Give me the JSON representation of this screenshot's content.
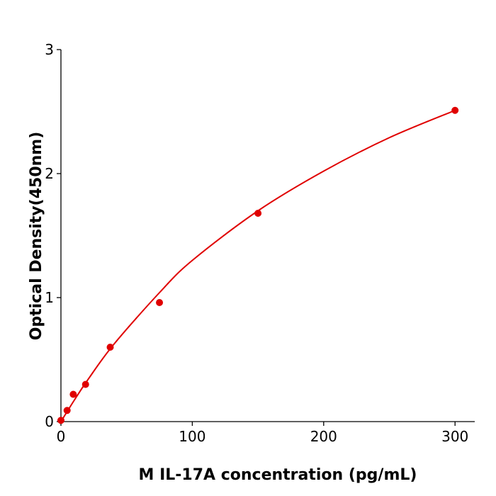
{
  "chart_data": {
    "type": "scatter",
    "x_label": "M  IL-17A concentration (pg/mL)",
    "y_label": "Optical Density(450nm)",
    "series": [
      {
        "color": "#e00000",
        "x": [
          0,
          4.69,
          9.38,
          18.75,
          37.5,
          75,
          150,
          300
        ],
        "values": [
          0.01,
          0.09,
          0.22,
          0.3,
          0.6,
          0.96,
          1.68,
          2.51
        ]
      }
    ],
    "fit": {
      "color": "#e00000",
      "x": [
        0,
        10,
        20,
        40,
        75,
        100,
        150,
        200,
        250,
        300
      ],
      "values": [
        0,
        0.17,
        0.33,
        0.62,
        1.04,
        1.3,
        1.7,
        2.02,
        2.29,
        2.51
      ]
    },
    "xlim": [
      0,
      315
    ],
    "ylim": [
      0,
      3
    ],
    "xticks": [
      0,
      100,
      200,
      300
    ],
    "yticks": [
      0,
      1,
      2,
      3
    ]
  }
}
